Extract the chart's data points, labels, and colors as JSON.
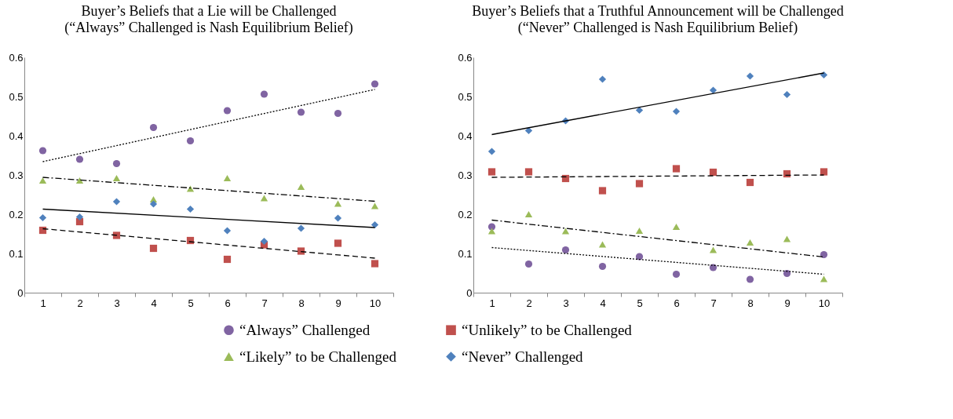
{
  "chart_data": [
    {
      "type": "scatter",
      "title": "Buyer’s Beliefs that a Lie will be Challenged",
      "subtitle": "(“Always” Challenged is Nash Equilibrium Belief)",
      "categories": [
        "1",
        "2",
        "3",
        "4",
        "5",
        "6",
        "7",
        "8",
        "9",
        "10"
      ],
      "ylim": [
        0,
        0.6
      ],
      "yticks": [
        0,
        0.1,
        0.2,
        0.3,
        0.4,
        0.5,
        0.6
      ],
      "legend": "bottom",
      "series": [
        {
          "name": "“Always” Challenged",
          "color": "#8064a2",
          "marker": "circle",
          "values": [
            0.362,
            0.34,
            0.329,
            0.421,
            0.387,
            0.464,
            0.506,
            0.46,
            0.457,
            0.532
          ]
        },
        {
          "name": "“Unlikely” to be Challenged",
          "color": "#c0504d",
          "marker": "square",
          "values": [
            0.159,
            0.181,
            0.146,
            0.113,
            0.133,
            0.085,
            0.122,
            0.106,
            0.126,
            0.074
          ]
        },
        {
          "name": "“Likely” to be Challenged",
          "color": "#9bbb59",
          "marker": "triangle",
          "values": [
            0.286,
            0.286,
            0.292,
            0.238,
            0.265,
            0.292,
            0.241,
            0.27,
            0.227,
            0.221
          ]
        },
        {
          "name": "“Never” Challenged",
          "color": "#4f81bd",
          "marker": "diamond",
          "values": [
            0.191,
            0.193,
            0.232,
            0.226,
            0.213,
            0.158,
            0.131,
            0.164,
            0.19,
            0.173
          ]
        },
        {
          "type": "line",
          "x": [
            "1",
            "10"
          ],
          "values": [
            0.334,
            0.518
          ],
          "color": "#000000",
          "line_style": "dotted",
          "marker": "none"
        },
        {
          "type": "line",
          "x": [
            "1",
            "10"
          ],
          "values": [
            0.294,
            0.233
          ],
          "color": "#000000",
          "line_style": "dashdot",
          "marker": "none"
        },
        {
          "type": "line",
          "x": [
            "1",
            "10"
          ],
          "values": [
            0.213,
            0.166
          ],
          "color": "#000000",
          "line_style": "solid",
          "marker": "none"
        },
        {
          "type": "line",
          "x": [
            "1",
            "10"
          ],
          "values": [
            0.163,
            0.088
          ],
          "color": "#000000",
          "line_style": "dashed",
          "marker": "none"
        }
      ]
    },
    {
      "type": "scatter",
      "title": "Buyer’s Beliefs that a Truthful Announcement will be Challenged",
      "subtitle": "(“Never” Challenged is Nash Equilibrium Belief)",
      "categories": [
        "1",
        "2",
        "3",
        "4",
        "5",
        "6",
        "7",
        "8",
        "9",
        "10"
      ],
      "ylim": [
        0,
        0.6
      ],
      "yticks": [
        0,
        0.1,
        0.2,
        0.3,
        0.4,
        0.5,
        0.6
      ],
      "legend": "bottom",
      "series": [
        {
          "name": "“Always” Challenged",
          "color": "#8064a2",
          "marker": "circle",
          "values": [
            0.168,
            0.073,
            0.109,
            0.067,
            0.092,
            0.047,
            0.064,
            0.034,
            0.049,
            0.097
          ]
        },
        {
          "name": "“Unlikely” to be Challenged",
          "color": "#c0504d",
          "marker": "square",
          "values": [
            0.308,
            0.308,
            0.291,
            0.26,
            0.278,
            0.316,
            0.307,
            0.281,
            0.303,
            0.308
          ]
        },
        {
          "name": "“Likely” to be Challenged",
          "color": "#9bbb59",
          "marker": "triangle",
          "values": [
            0.157,
            0.2,
            0.157,
            0.123,
            0.158,
            0.168,
            0.109,
            0.128,
            0.137,
            0.035
          ]
        },
        {
          "name": "“Never” Challenged",
          "color": "#4f81bd",
          "marker": "diamond",
          "values": [
            0.36,
            0.413,
            0.438,
            0.544,
            0.465,
            0.462,
            0.516,
            0.552,
            0.505,
            0.555
          ]
        },
        {
          "type": "line",
          "x": [
            "1",
            "10"
          ],
          "values": [
            0.403,
            0.56
          ],
          "color": "#000000",
          "line_style": "solid",
          "marker": "none"
        },
        {
          "type": "line",
          "x": [
            "1",
            "10"
          ],
          "values": [
            0.294,
            0.3
          ],
          "color": "#000000",
          "line_style": "dashed",
          "marker": "none"
        },
        {
          "type": "line",
          "x": [
            "1",
            "10"
          ],
          "values": [
            0.185,
            0.091
          ],
          "color": "#000000",
          "line_style": "dashdot",
          "marker": "none"
        },
        {
          "type": "line",
          "x": [
            "1",
            "10"
          ],
          "values": [
            0.115,
            0.047
          ],
          "color": "#000000",
          "line_style": "dotted",
          "marker": "none"
        }
      ]
    }
  ]
}
